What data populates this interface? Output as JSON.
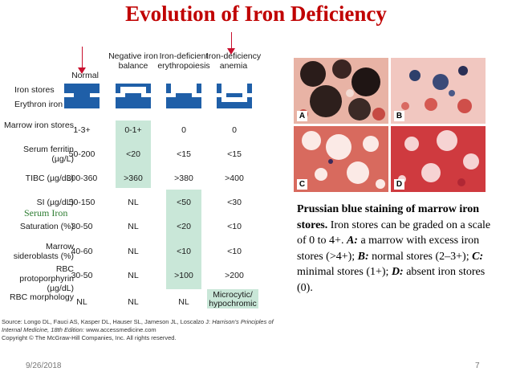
{
  "title": "Evolution of Iron Deficiency",
  "figure": {
    "columns": [
      "Normal",
      "Negative iron balance",
      "Iron-deficient erythropoiesis",
      "Iron-deficiency anemia"
    ],
    "block_labels": [
      "Iron stores",
      "Erythron iron"
    ],
    "rows": [
      {
        "label": "Marrow iron stores",
        "values": [
          "1-3+",
          "0-1+",
          "0",
          "0"
        ]
      },
      {
        "label": "Serum ferritin (µg/L)",
        "values": [
          "50-200",
          "<20",
          "<15",
          "<15"
        ]
      },
      {
        "label": "TIBC (µg/dL)",
        "values": [
          "300-360",
          ">360",
          ">380",
          ">400"
        ]
      },
      {
        "label": "SI (µg/dL)",
        "values": [
          "50-150",
          "NL",
          "<50",
          "<30"
        ]
      },
      {
        "label": "Saturation (%)",
        "values": [
          "30-50",
          "NL",
          "<20",
          "<10"
        ]
      },
      {
        "label": "Marrow sideroblasts (%)",
        "values": [
          "40-60",
          "NL",
          "<10",
          "<10"
        ]
      },
      {
        "label": "RBC protoporphyrin (µg/dL)",
        "values": [
          "30-50",
          "NL",
          ">100",
          ">200"
        ]
      },
      {
        "label": "RBC morphology",
        "values": [
          "NL",
          "NL",
          "NL",
          "Microcytic/ hypochromic"
        ]
      }
    ],
    "serum_iron_label": "Serum Iron",
    "source_line1": "Source: Longo DL, Fauci AS, Kasper DL, Hauser SL, Jameson JL, Loscalzo J:",
    "source_book": "Harrison's Principles of Internal Medicine, 18th Edition:",
    "source_url": "www.accessmedicine.com",
    "copyright": "Copyright © The McGraw-Hill Companies, Inc. All rights reserved.",
    "colors": {
      "block_blue": "#1f5fa8",
      "highlight": "#c9e7d8",
      "arrow": "#c8102e"
    }
  },
  "photos": [
    {
      "letter": "A"
    },
    {
      "letter": "B"
    },
    {
      "letter": "C"
    },
    {
      "letter": "D"
    }
  ],
  "caption": {
    "lead": "Prussian blue staining of marrow iron stores.",
    "rest": "Iron stores can be graded on a scale of 0 to 4+.",
    "a_label": "A:",
    "a_text": "a marrow with excess iron stores (>4+);",
    "b_label": "B:",
    "b_text": "normal stores (2–3+);",
    "c_label": "C:",
    "c_text": "minimal stores (1+);",
    "d_label": "D:",
    "d_text": "absent iron stores (0)."
  },
  "footer": {
    "date": "9/26/2018",
    "page": "7"
  }
}
